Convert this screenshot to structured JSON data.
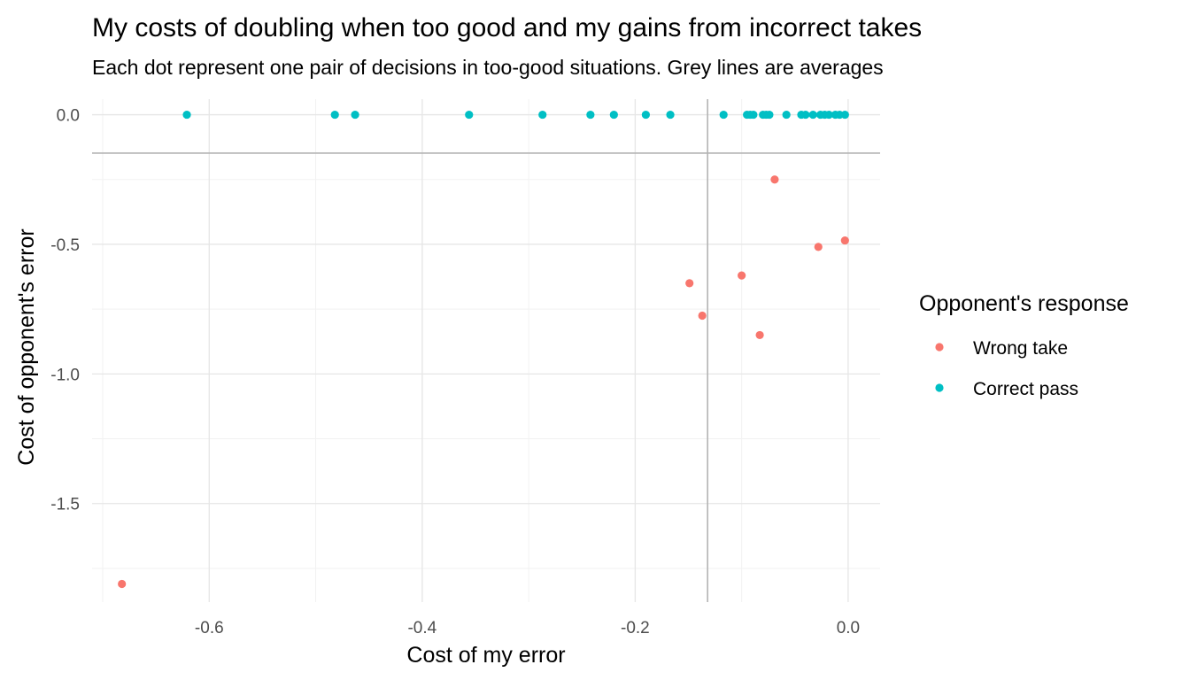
{
  "chart_data": {
    "type": "scatter",
    "title": "My costs of doubling when too good and my gains from incorrect takes",
    "subtitle": "Each dot represent one pair of decisions in too-good situations. Grey lines are averages",
    "xlabel": "Cost of my error",
    "ylabel": "Cost of opponent's error",
    "xlim": [
      -0.71,
      0.03
    ],
    "ylim": [
      -1.88,
      0.06
    ],
    "x_ticks": [
      -0.6,
      -0.4,
      -0.2,
      0.0
    ],
    "x_tick_labels": [
      "-0.6",
      "-0.4",
      "-0.2",
      "0.0"
    ],
    "y_ticks": [
      0.0,
      -0.5,
      -1.0,
      -1.5
    ],
    "y_tick_labels": [
      "0.0",
      "-0.5",
      "-1.0",
      "-1.5"
    ],
    "grid": true,
    "reference_lines": {
      "x_mean": -0.132,
      "y_mean": -0.148,
      "color": "#b3b3b3"
    },
    "legend": {
      "title": "Opponent's response",
      "position": "right"
    },
    "series": [
      {
        "name": "Wrong take",
        "color": "#F8766D",
        "points": [
          {
            "x": -0.682,
            "y": -1.81
          },
          {
            "x": -0.149,
            "y": -0.65
          },
          {
            "x": -0.137,
            "y": -0.775
          },
          {
            "x": -0.1,
            "y": -0.62
          },
          {
            "x": -0.083,
            "y": -0.85
          },
          {
            "x": -0.069,
            "y": -0.25
          },
          {
            "x": -0.028,
            "y": -0.51
          },
          {
            "x": -0.003,
            "y": -0.485
          }
        ]
      },
      {
        "name": "Correct pass",
        "color": "#00BFC4",
        "points": [
          {
            "x": -0.621,
            "y": 0.0
          },
          {
            "x": -0.482,
            "y": 0.0
          },
          {
            "x": -0.463,
            "y": 0.0
          },
          {
            "x": -0.356,
            "y": 0.0
          },
          {
            "x": -0.287,
            "y": 0.0
          },
          {
            "x": -0.242,
            "y": 0.0
          },
          {
            "x": -0.22,
            "y": 0.0
          },
          {
            "x": -0.19,
            "y": 0.0
          },
          {
            "x": -0.167,
            "y": 0.0
          },
          {
            "x": -0.117,
            "y": 0.0
          },
          {
            "x": -0.095,
            "y": 0.0
          },
          {
            "x": -0.092,
            "y": 0.0
          },
          {
            "x": -0.089,
            "y": 0.0
          },
          {
            "x": -0.08,
            "y": 0.0
          },
          {
            "x": -0.077,
            "y": 0.0
          },
          {
            "x": -0.074,
            "y": 0.0
          },
          {
            "x": -0.058,
            "y": 0.0
          },
          {
            "x": -0.044,
            "y": 0.0
          },
          {
            "x": -0.04,
            "y": 0.0
          },
          {
            "x": -0.033,
            "y": 0.0
          },
          {
            "x": -0.026,
            "y": 0.0
          },
          {
            "x": -0.022,
            "y": 0.0
          },
          {
            "x": -0.018,
            "y": 0.0
          },
          {
            "x": -0.012,
            "y": 0.0
          },
          {
            "x": -0.008,
            "y": 0.0
          },
          {
            "x": -0.003,
            "y": 0.0
          }
        ]
      }
    ]
  }
}
